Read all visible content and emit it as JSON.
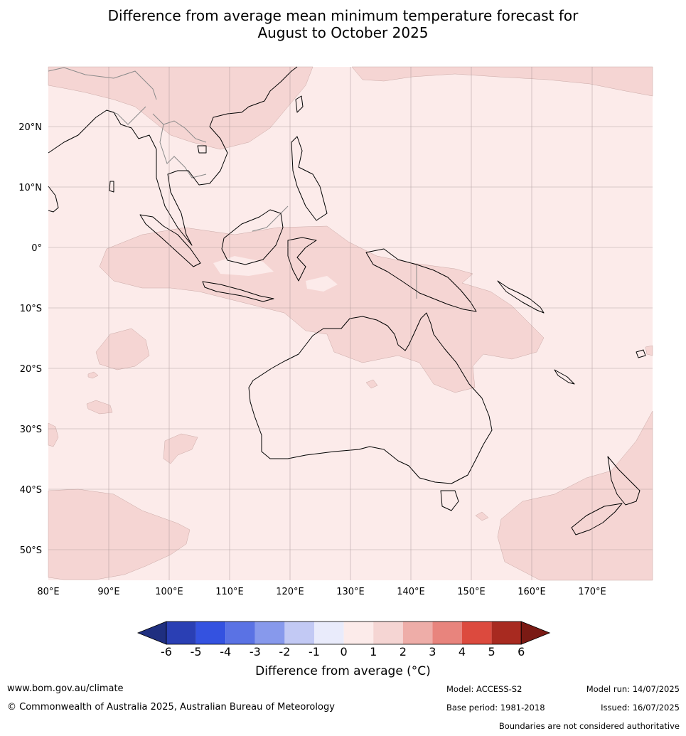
{
  "title_line1": "Difference from average mean minimum temperature forecast for",
  "title_line2": "August to October 2025",
  "lat_labels": [
    "20°N",
    "10°N",
    "0°",
    "10°S",
    "20°S",
    "30°S",
    "40°S",
    "50°S"
  ],
  "lon_labels": [
    "80°E",
    "90°E",
    "100°E",
    "110°E",
    "120°E",
    "130°E",
    "140°E",
    "150°E",
    "160°E",
    "170°E"
  ],
  "colorbar": {
    "ticks": [
      "-6",
      "-5",
      "-4",
      "-3",
      "-2",
      "-1",
      "0",
      "1",
      "2",
      "3",
      "4",
      "5",
      "6"
    ],
    "colors": [
      "#1f2f80",
      "#2a3fb4",
      "#3452e0",
      "#5a72e4",
      "#8799ec",
      "#c2c9f4",
      "#e9ebfb",
      "#fcebea",
      "#f5d5d3",
      "#eeada8",
      "#e8847d",
      "#dc4a3e",
      "#a82a20",
      "#7a1a14"
    ],
    "label": "Difference from average (°C)"
  },
  "footer": {
    "website": "www.bom.gov.au/climate",
    "copyright": "© Commonwealth of Australia 2025, Australian Bureau of Meteorology",
    "model": "Model: ACCESS-S2",
    "model_run": "Model run: 14/07/2025",
    "base_period": "Base period: 1981-2018",
    "issued": "Issued: 16/07/2025",
    "disclaimer": "Boundaries are not considered authoritative"
  },
  "map_colors": {
    "ocean_fill": "#fcebea",
    "warm_fill": "#f5d5d3",
    "coastline": "#000000",
    "border": "#888888",
    "grid": "#9a8a8a"
  }
}
